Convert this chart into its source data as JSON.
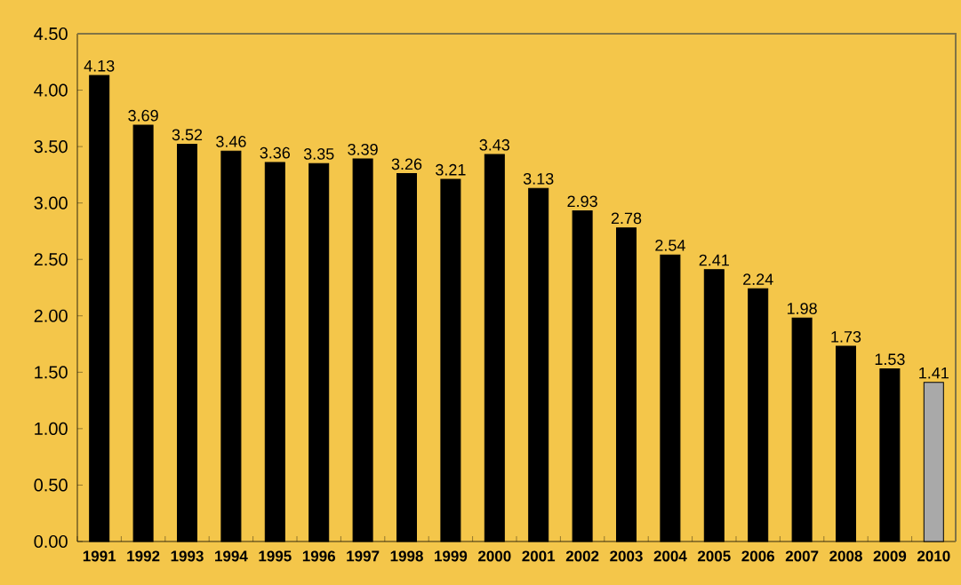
{
  "chart_data": {
    "type": "bar",
    "categories": [
      "1991",
      "1992",
      "1993",
      "1994",
      "1995",
      "1996",
      "1997",
      "1998",
      "1999",
      "2000",
      "2001",
      "2002",
      "2003",
      "2004",
      "2005",
      "2006",
      "2007",
      "2008",
      "2009",
      "2010"
    ],
    "values": [
      4.13,
      3.69,
      3.52,
      3.46,
      3.36,
      3.35,
      3.39,
      3.26,
      3.21,
      3.43,
      3.13,
      2.93,
      2.78,
      2.54,
      2.41,
      2.24,
      1.98,
      1.73,
      1.53,
      1.41
    ],
    "colors": [
      "#000000",
      "#000000",
      "#000000",
      "#000000",
      "#000000",
      "#000000",
      "#000000",
      "#000000",
      "#000000",
      "#000000",
      "#000000",
      "#000000",
      "#000000",
      "#000000",
      "#000000",
      "#000000",
      "#000000",
      "#000000",
      "#000000",
      "#a9a9a9"
    ],
    "ylim": [
      0,
      4.5
    ],
    "yticks": [
      {
        "value": 0,
        "label": "0.00"
      },
      {
        "value": 0.5,
        "label": "0.50"
      },
      {
        "value": 1,
        "label": "1.00"
      },
      {
        "value": 1.5,
        "label": "1.50"
      },
      {
        "value": 2,
        "label": "2.00"
      },
      {
        "value": 2.5,
        "label": "2.50"
      },
      {
        "value": 3,
        "label": "3.00"
      },
      {
        "value": 3.5,
        "label": "3.50"
      },
      {
        "value": 4,
        "label": "4.00"
      },
      {
        "value": 4.5,
        "label": "4.50"
      }
    ],
    "data_labels": true
  }
}
